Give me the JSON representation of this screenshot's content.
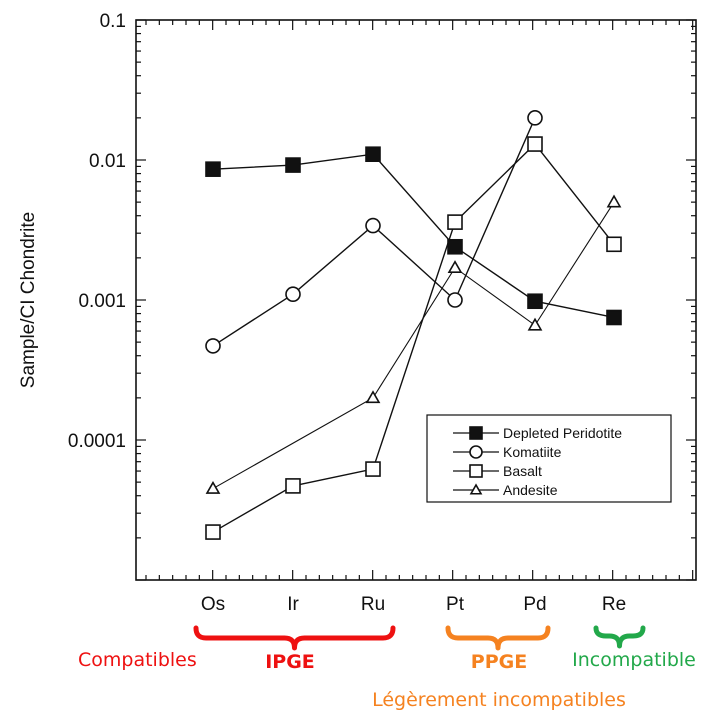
{
  "chart_data": {
    "type": "line",
    "ylabel": "Sample/CI Chondrite",
    "xlabel": "",
    "yscale": "log",
    "ylim": [
      1e-05,
      0.1
    ],
    "yticks": [
      {
        "value": 0.1,
        "label": "0.1"
      },
      {
        "value": 0.01,
        "label": "0.01"
      },
      {
        "value": 0.001,
        "label": "0.001"
      },
      {
        "value": 0.0001,
        "label": "0.0001"
      }
    ],
    "categories": [
      "Os",
      "Ir",
      "Ru",
      "Pt",
      "Pd",
      "Re"
    ],
    "grid": false,
    "legend_position": "bottom-right",
    "series": [
      {
        "name": "Depleted Peridotite",
        "marker": "filled-square",
        "values": [
          0.0086,
          0.0092,
          0.011,
          0.0024,
          0.00098,
          0.00075
        ]
      },
      {
        "name": "Komatiite",
        "marker": "open-circle",
        "values": [
          0.00047,
          0.0011,
          0.0034,
          0.001,
          0.02,
          null
        ]
      },
      {
        "name": "Basalt",
        "marker": "open-square",
        "values": [
          2.2e-05,
          4.7e-05,
          6.2e-05,
          0.0036,
          0.013,
          0.0025
        ]
      },
      {
        "name": "Andesite",
        "marker": "open-triangle",
        "values": [
          4.5e-05,
          null,
          0.0002,
          0.0017,
          0.00066,
          0.005
        ]
      }
    ],
    "annotations": [
      {
        "text": "Compatibles",
        "color": "#ee1111"
      },
      {
        "text": "IPGE",
        "color": "#ee1111",
        "bracket": [
          "Os",
          "Ru"
        ]
      },
      {
        "text": "PPGE",
        "color": "#f58220",
        "bracket": [
          "Pt",
          "Pd"
        ]
      },
      {
        "text": "Incompatible",
        "color": "#22a84a",
        "bracket": [
          "Re",
          "Re"
        ]
      },
      {
        "text": "Légèrement incompatibles",
        "color": "#f58220"
      }
    ]
  }
}
